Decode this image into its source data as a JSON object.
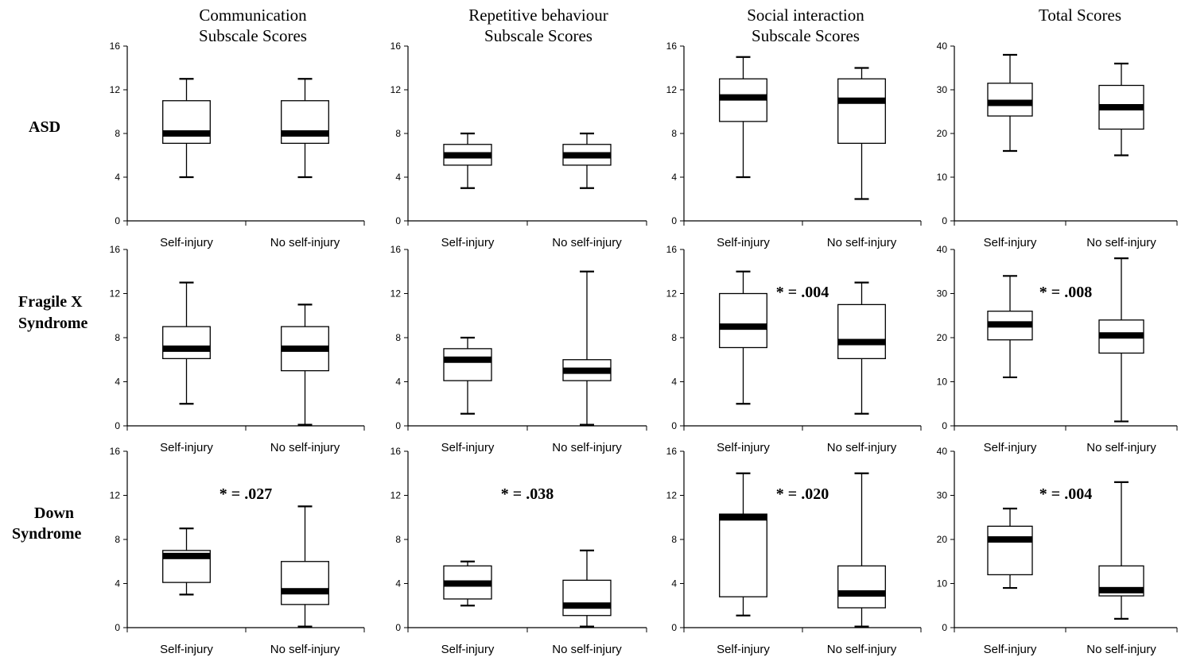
{
  "column_titles": [
    [
      "Communication",
      "Subscale Scores"
    ],
    [
      "Repetitive behaviour",
      "Subscale Scores"
    ],
    [
      "Social interaction",
      "Subscale Scores"
    ],
    [
      "Total Scores"
    ]
  ],
  "row_labels": [
    [
      "ASD"
    ],
    [
      "Fragile X",
      "Syndrome"
    ],
    [
      "Down",
      "Syndrome"
    ]
  ],
  "chart_data": [
    {
      "type": "box",
      "row": 0,
      "col": 0,
      "ylim": [
        0,
        16
      ],
      "yticks": [
        0,
        4,
        8,
        12,
        16
      ],
      "categories": [
        "Self-injury",
        "No self-injury"
      ],
      "boxes": [
        {
          "min": 4,
          "q1": 7.1,
          "median": 8,
          "q3": 11,
          "max": 13
        },
        {
          "min": 4,
          "q1": 7.1,
          "median": 8,
          "q3": 11,
          "max": 13
        }
      ],
      "annotation": ""
    },
    {
      "type": "box",
      "row": 0,
      "col": 1,
      "ylim": [
        0,
        16
      ],
      "yticks": [
        0,
        4,
        8,
        12,
        16
      ],
      "categories": [
        "Self-injury",
        "No self-injury"
      ],
      "boxes": [
        {
          "min": 3,
          "q1": 5.1,
          "median": 6,
          "q3": 7,
          "max": 8
        },
        {
          "min": 3,
          "q1": 5.1,
          "median": 6,
          "q3": 7,
          "max": 8
        }
      ],
      "annotation": ""
    },
    {
      "type": "box",
      "row": 0,
      "col": 2,
      "ylim": [
        0,
        16
      ],
      "yticks": [
        0,
        4,
        8,
        12,
        16
      ],
      "categories": [
        "Self-injury",
        "No self-injury"
      ],
      "boxes": [
        {
          "min": 4,
          "q1": 9.1,
          "median": 11.3,
          "q3": 13,
          "max": 15
        },
        {
          "min": 2,
          "q1": 7.1,
          "median": 11,
          "q3": 13,
          "max": 14
        }
      ],
      "annotation": ""
    },
    {
      "type": "box",
      "row": 0,
      "col": 3,
      "ylim": [
        0,
        40
      ],
      "yticks": [
        0,
        10,
        20,
        30,
        40
      ],
      "categories": [
        "Self-injury",
        "No self-injury"
      ],
      "boxes": [
        {
          "min": 16,
          "q1": 24,
          "median": 27,
          "q3": 31.5,
          "max": 38
        },
        {
          "min": 15,
          "q1": 21,
          "median": 26,
          "q3": 31,
          "max": 36
        }
      ],
      "annotation": ""
    },
    {
      "type": "box",
      "row": 1,
      "col": 0,
      "ylim": [
        0,
        16
      ],
      "yticks": [
        0,
        4,
        8,
        12,
        16
      ],
      "categories": [
        "Self-injury",
        "No self-injury"
      ],
      "boxes": [
        {
          "min": 2,
          "q1": 6.1,
          "median": 7,
          "q3": 9,
          "max": 13
        },
        {
          "min": 0.1,
          "q1": 5,
          "median": 7,
          "q3": 9,
          "max": 11
        }
      ],
      "annotation": ""
    },
    {
      "type": "box",
      "row": 1,
      "col": 1,
      "ylim": [
        0,
        16
      ],
      "yticks": [
        0,
        4,
        8,
        12,
        16
      ],
      "categories": [
        "Self-injury",
        "No self-injury"
      ],
      "boxes": [
        {
          "min": 1.1,
          "q1": 4.1,
          "median": 6,
          "q3": 7,
          "max": 8
        },
        {
          "min": 0.1,
          "q1": 4.1,
          "median": 5,
          "q3": 6,
          "max": 14
        }
      ],
      "annotation": ""
    },
    {
      "type": "box",
      "row": 1,
      "col": 2,
      "ylim": [
        0,
        16
      ],
      "yticks": [
        0,
        4,
        8,
        12,
        16
      ],
      "categories": [
        "Self-injury",
        "No self-injury"
      ],
      "boxes": [
        {
          "min": 2,
          "q1": 7.1,
          "median": 9,
          "q3": 12,
          "max": 14
        },
        {
          "min": 1.1,
          "q1": 6.1,
          "median": 7.6,
          "q3": 11,
          "max": 13
        }
      ],
      "annotation": "* = .004"
    },
    {
      "type": "box",
      "row": 1,
      "col": 3,
      "ylim": [
        0,
        40
      ],
      "yticks": [
        0,
        10,
        20,
        30,
        40
      ],
      "categories": [
        "Self-injury",
        "No self-injury"
      ],
      "boxes": [
        {
          "min": 11,
          "q1": 19.5,
          "median": 23,
          "q3": 26,
          "max": 34
        },
        {
          "min": 1,
          "q1": 16.5,
          "median": 20.5,
          "q3": 24,
          "max": 38
        }
      ],
      "annotation": "* = .008"
    },
    {
      "type": "box",
      "row": 2,
      "col": 0,
      "ylim": [
        0,
        16
      ],
      "yticks": [
        0,
        4,
        8,
        12,
        16
      ],
      "categories": [
        "Self-injury",
        "No self-injury"
      ],
      "boxes": [
        {
          "min": 3,
          "q1": 4.1,
          "median": 6.5,
          "q3": 7,
          "max": 9
        },
        {
          "min": 0.1,
          "q1": 2.1,
          "median": 3.3,
          "q3": 6,
          "max": 11
        }
      ],
      "annotation": "* = .027"
    },
    {
      "type": "box",
      "row": 2,
      "col": 1,
      "ylim": [
        0,
        16
      ],
      "yticks": [
        0,
        4,
        8,
        12,
        16
      ],
      "categories": [
        "Self-injury",
        "No self-injury"
      ],
      "boxes": [
        {
          "min": 2,
          "q1": 2.6,
          "median": 4,
          "q3": 5.6,
          "max": 6
        },
        {
          "min": 0.1,
          "q1": 1.1,
          "median": 2,
          "q3": 4.3,
          "max": 7
        }
      ],
      "annotation": "* = .038"
    },
    {
      "type": "box",
      "row": 2,
      "col": 2,
      "ylim": [
        0,
        16
      ],
      "yticks": [
        0,
        4,
        8,
        12,
        16
      ],
      "categories": [
        "Self-injury",
        "No self-injury"
      ],
      "boxes": [
        {
          "min": 1.1,
          "q1": 2.8,
          "median": 10,
          "q3": 10.3,
          "max": 14
        },
        {
          "min": 0.1,
          "q1": 1.8,
          "median": 3.1,
          "q3": 5.6,
          "max": 14
        }
      ],
      "annotation": "* = .020"
    },
    {
      "type": "box",
      "row": 2,
      "col": 3,
      "ylim": [
        0,
        40
      ],
      "yticks": [
        0,
        10,
        20,
        30,
        40
      ],
      "categories": [
        "Self-injury",
        "No self-injury"
      ],
      "boxes": [
        {
          "min": 9,
          "q1": 12,
          "median": 20,
          "q3": 23,
          "max": 27
        },
        {
          "min": 2,
          "q1": 7.2,
          "median": 8.5,
          "q3": 14,
          "max": 33
        }
      ],
      "annotation": "* = .004"
    }
  ]
}
